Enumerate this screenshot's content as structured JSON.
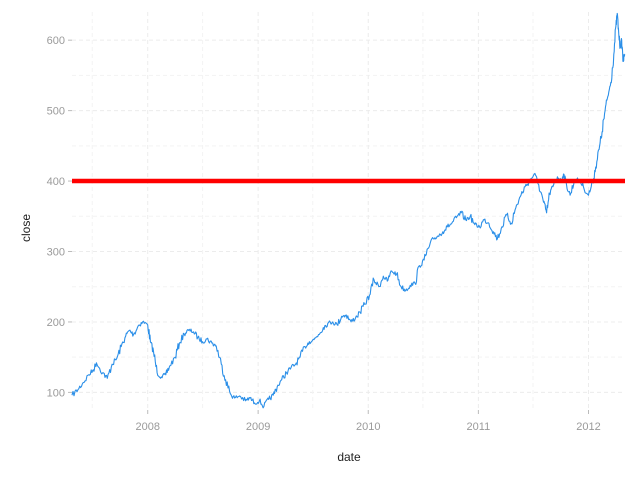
{
  "chart_data": {
    "type": "line",
    "title": "",
    "xlabel": "date",
    "ylabel": "close",
    "xlim": [
      "2007-04-25",
      "2012-05-01"
    ],
    "ylim": [
      75,
      640
    ],
    "x_ticks": [
      "2008",
      "2009",
      "2010",
      "2011",
      "2012"
    ],
    "x_tick_dates": [
      "2008-01-01",
      "2009-01-01",
      "2010-01-01",
      "2011-01-01",
      "2012-01-01"
    ],
    "y_ticks": [
      100,
      200,
      300,
      400,
      500,
      600
    ],
    "grid": true,
    "legend": "none",
    "colors": {
      "line": "#2b8fe8",
      "hline": "#ff0000",
      "grid": "#ececec"
    },
    "hline": {
      "y": 400
    },
    "series": [
      {
        "x": [
          "2007-04-25",
          "2007-05-15",
          "2007-06-01",
          "2007-06-20",
          "2007-07-05",
          "2007-07-15",
          "2007-08-05",
          "2007-08-20",
          "2007-09-05",
          "2007-09-20",
          "2007-10-05",
          "2007-10-20",
          "2007-11-01",
          "2007-11-15",
          "2007-12-01",
          "2007-12-15",
          "2008-01-01",
          "2008-01-10",
          "2008-01-20",
          "2008-02-01",
          "2008-02-15",
          "2008-03-01",
          "2008-03-15",
          "2008-04-01",
          "2008-04-15",
          "2008-05-01",
          "2008-05-15",
          "2008-06-01",
          "2008-06-15",
          "2008-07-01",
          "2008-07-15",
          "2008-08-01",
          "2008-08-15",
          "2008-09-01",
          "2008-09-15",
          "2008-10-01",
          "2008-10-15",
          "2008-11-01",
          "2008-11-20",
          "2008-12-05",
          "2008-12-20",
          "2009-01-05",
          "2009-01-20",
          "2009-02-05",
          "2009-02-20",
          "2009-03-05",
          "2009-03-20",
          "2009-04-05",
          "2009-04-20",
          "2009-05-05",
          "2009-05-20",
          "2009-06-05",
          "2009-06-20",
          "2009-07-05",
          "2009-07-20",
          "2009-08-05",
          "2009-08-20",
          "2009-09-05",
          "2009-09-20",
          "2009-10-05",
          "2009-10-20",
          "2009-11-05",
          "2009-11-20",
          "2009-12-05",
          "2009-12-20",
          "2010-01-05",
          "2010-01-20",
          "2010-02-05",
          "2010-02-20",
          "2010-03-05",
          "2010-03-20",
          "2010-04-05",
          "2010-04-20",
          "2010-05-05",
          "2010-05-20",
          "2010-06-05",
          "2010-06-20",
          "2010-07-05",
          "2010-07-20",
          "2010-08-05",
          "2010-08-20",
          "2010-09-05",
          "2010-09-20",
          "2010-10-05",
          "2010-10-20",
          "2010-11-05",
          "2010-11-20",
          "2010-12-05",
          "2010-12-20",
          "2011-01-05",
          "2011-01-20",
          "2011-02-05",
          "2011-02-20",
          "2011-03-05",
          "2011-03-20",
          "2011-04-05",
          "2011-04-20",
          "2011-05-05",
          "2011-05-20",
          "2011-06-05",
          "2011-06-20",
          "2011-07-05",
          "2011-07-20",
          "2011-08-05",
          "2011-08-15",
          "2011-08-25",
          "2011-09-05",
          "2011-09-20",
          "2011-10-01",
          "2011-10-10",
          "2011-10-20",
          "2011-11-01",
          "2011-11-15",
          "2011-12-01",
          "2011-12-15",
          "2012-01-01",
          "2012-01-15",
          "2012-01-25",
          "2012-02-05",
          "2012-02-15",
          "2012-02-25",
          "2012-03-05",
          "2012-03-15",
          "2012-03-25",
          "2012-04-01",
          "2012-04-05",
          "2012-04-10",
          "2012-04-15",
          "2012-04-20",
          "2012-04-25",
          "2012-04-30"
        ],
        "y": [
          96,
          104,
          114,
          125,
          132,
          142,
          128,
          120,
          140,
          148,
          165,
          180,
          188,
          182,
          195,
          200,
          196,
          172,
          158,
          128,
          122,
          125,
          138,
          150,
          170,
          183,
          188,
          186,
          178,
          172,
          176,
          170,
          166,
          140,
          118,
          98,
          92,
          95,
          88,
          92,
          85,
          88,
          80,
          90,
          96,
          108,
          118,
          128,
          135,
          140,
          150,
          165,
          172,
          175,
          182,
          192,
          198,
          200,
          196,
          208,
          210,
          200,
          206,
          214,
          225,
          238,
          260,
          250,
          265,
          258,
          272,
          268,
          250,
          245,
          252,
          255,
          280,
          288,
          305,
          318,
          322,
          328,
          335,
          340,
          348,
          355,
          345,
          350,
          338,
          335,
          345,
          340,
          328,
          318,
          335,
          352,
          340,
          362,
          378,
          392,
          400,
          410,
          395,
          370,
          355,
          382,
          392,
          406,
          400,
          410,
          395,
          380,
          400,
          402,
          392,
          380,
          398,
          420,
          445,
          470,
          500,
          520,
          540,
          580,
          620,
          638,
          610,
          590,
          600,
          570,
          580
        ]
      }
    ]
  }
}
